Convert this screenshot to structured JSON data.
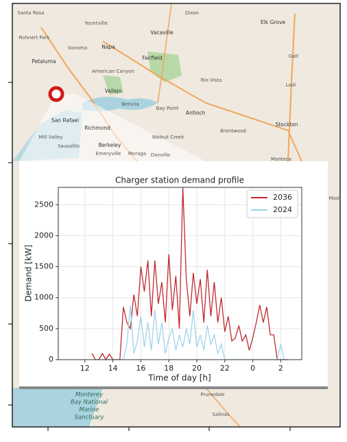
{
  "map": {
    "places": [
      "Santa Rosa",
      "Yountville",
      "Dixon",
      "Elk Grove",
      "Rohnert Park",
      "Sonoma",
      "Napa",
      "Vacaville",
      "Galt",
      "Petaluma",
      "American Canyon",
      "Fairfield",
      "Lodi",
      "Vallejo",
      "Rio Vista",
      "Benicia",
      "Bay Point",
      "Antioch",
      "San Rafael",
      "Stockton",
      "Richmond",
      "Brentwood",
      "Mill Valley",
      "Berkeley",
      "Walnut Creek",
      "Sausalito",
      "Emeryville",
      "Moraga",
      "Danville",
      "Manteca",
      "Mod",
      "Prunedale",
      "Salinas"
    ],
    "sanctuary": [
      "Monterey",
      "Bay National",
      "Marine",
      "Sanctuary"
    ]
  },
  "chart_data": {
    "type": "line",
    "title": "Charger station demand profile",
    "x_label": "Time of day [h]",
    "y_label": "Demand [kW]",
    "x": [
      12.5,
      12.75,
      13,
      13.25,
      13.5,
      13.75,
      14,
      14.25,
      14.5,
      14.75,
      15,
      15.25,
      15.5,
      15.75,
      16,
      16.25,
      16.5,
      16.75,
      17,
      17.25,
      17.5,
      17.75,
      18,
      18.25,
      18.5,
      18.75,
      19,
      19.25,
      19.5,
      19.75,
      20,
      20.25,
      20.5,
      20.75,
      21,
      21.25,
      21.5,
      21.75,
      22,
      22.25,
      22.5,
      22.75,
      23,
      23.25,
      23.5,
      23.75,
      24,
      24.25,
      24.5,
      24.75,
      25,
      25.25,
      25.5,
      25.75,
      26,
      26.25,
      26.5
    ],
    "series": [
      {
        "name": "2036",
        "color": "#c0282d",
        "values": [
          100,
          0,
          0,
          100,
          0,
          90,
          0,
          0,
          0,
          850,
          600,
          500,
          1050,
          700,
          1500,
          1100,
          1600,
          700,
          1600,
          900,
          1250,
          600,
          1700,
          800,
          1350,
          500,
          2780,
          1300,
          700,
          1400,
          900,
          1300,
          600,
          1450,
          700,
          1250,
          600,
          1000,
          450,
          700,
          300,
          350,
          550,
          300,
          400,
          150,
          350,
          600,
          880,
          600,
          850,
          400,
          400,
          0,
          0,
          0,
          0
        ]
      },
      {
        "name": "2024",
        "color": "#9fd3ea",
        "values": [
          0,
          0,
          0,
          0,
          0,
          0,
          0,
          0,
          0,
          0,
          250,
          880,
          100,
          300,
          700,
          200,
          600,
          150,
          800,
          250,
          600,
          100,
          350,
          500,
          150,
          400,
          200,
          500,
          250,
          800,
          200,
          400,
          150,
          550,
          250,
          400,
          100,
          250,
          0,
          0,
          0,
          0,
          0,
          0,
          0,
          0,
          0,
          0,
          0,
          0,
          0,
          0,
          0,
          0,
          250,
          0,
          0
        ]
      }
    ],
    "xlim": [
      10.1,
      27.5
    ],
    "ylim": [
      0,
      2780
    ],
    "xticks": [
      12,
      14,
      16,
      18,
      20,
      22,
      {
        "value": 24,
        "label": "0"
      },
      {
        "value": 26,
        "label": "2"
      }
    ],
    "yticks": [
      0,
      500,
      1000,
      1500,
      2000,
      2500
    ],
    "grid": true,
    "legend": "upper right"
  }
}
